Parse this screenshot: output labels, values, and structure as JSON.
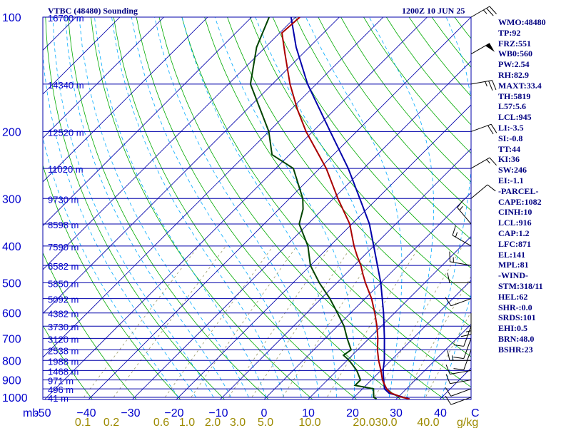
{
  "header": {
    "station": "VTBC (48480) Sounding",
    "time": "1200Z 10 JUN 25"
  },
  "indices": [
    "WMO:48480",
    "TP:92",
    "FRZ:551",
    "WB0:560",
    "PW:2.54",
    "RH:82.9",
    "MAXT:33.4",
    "TH:5819",
    "L57:5.6",
    "LCL:945",
    "LI:-3.5",
    "SI:-0.8",
    "TT:44",
    "KI:36",
    "SW:246",
    "EI:-1.1",
    "-PARCEL-",
    "CAPE:1082",
    "CINH:10",
    "LCL:916",
    "CAP:1.2",
    "LFC:871",
    "EL:141",
    "MPL:81",
    "-WIND-",
    "STM:318/11",
    "HEL:62",
    "SHR-:0.0",
    "SRDS:101",
    "EHI:0.5",
    "BRN:48.0",
    "BSHR:23"
  ],
  "chart_data": {
    "type": "skew-t",
    "title": "VTBC (48480) Sounding",
    "subtitle": "1200Z 10 JUN 25",
    "pressure_unit": "mb",
    "mixing_ratio_unit": "g/kg",
    "pressure_ticks": [
      100,
      200,
      300,
      400,
      500,
      600,
      700,
      800,
      900,
      1000
    ],
    "temperature_ticks": [
      "-50",
      "−40",
      "−30",
      "−20",
      "−10",
      "0",
      "10",
      "20",
      "30",
      "40",
      "C"
    ],
    "mixing_ratio_ticks": [
      "0.1",
      "0.2",
      "0.6",
      "1.0",
      "2.0",
      "3.0",
      "5.0",
      "10.0",
      "20.0",
      "30.0",
      "40.0"
    ],
    "height_levels": [
      {
        "pressure": 100,
        "label": "16700 m"
      },
      {
        "pressure": 150,
        "label": "14340 m"
      },
      {
        "pressure": 200,
        "label": "12520 m"
      },
      {
        "pressure": 250,
        "label": "11020 m"
      },
      {
        "pressure": 300,
        "label": "9730 m"
      },
      {
        "pressure": 350,
        "label": "8598 m"
      },
      {
        "pressure": 400,
        "label": "7590 m"
      },
      {
        "pressure": 450,
        "label": "6582 m"
      },
      {
        "pressure": 500,
        "label": "5850 m"
      },
      {
        "pressure": 550,
        "label": "5092 m"
      },
      {
        "pressure": 600,
        "label": "4382 m"
      },
      {
        "pressure": 650,
        "label": "3730 m"
      },
      {
        "pressure": 700,
        "label": "3120 m"
      },
      {
        "pressure": 750,
        "label": "2538 m"
      },
      {
        "pressure": 800,
        "label": "1988 m"
      },
      {
        "pressure": 850,
        "label": "1468 m"
      },
      {
        "pressure": 900,
        "label": "971 m"
      },
      {
        "pressure": 950,
        "label": "496 m"
      },
      {
        "pressure": 1000,
        "label": "41 m"
      }
    ],
    "temperature_profile": [
      {
        "p": 1010,
        "t": 33.0
      },
      {
        "p": 1000,
        "t": 31.0
      },
      {
        "p": 975,
        "t": 27.5
      },
      {
        "p": 950,
        "t": 25.5
      },
      {
        "p": 925,
        "t": 24.0
      },
      {
        "p": 900,
        "t": 22.5
      },
      {
        "p": 850,
        "t": 20.0
      },
      {
        "p": 800,
        "t": 17.2
      },
      {
        "p": 750,
        "t": 14.5
      },
      {
        "p": 700,
        "t": 12.0
      },
      {
        "p": 650,
        "t": 9.0
      },
      {
        "p": 600,
        "t": 5.5
      },
      {
        "p": 550,
        "t": 1.5
      },
      {
        "p": 500,
        "t": -3.5
      },
      {
        "p": 475,
        "t": -6.0
      },
      {
        "p": 450,
        "t": -8.5
      },
      {
        "p": 425,
        "t": -11.5
      },
      {
        "p": 400,
        "t": -14.5
      },
      {
        "p": 350,
        "t": -20.5
      },
      {
        "p": 300,
        "t": -29.0
      },
      {
        "p": 250,
        "t": -38.5
      },
      {
        "p": 200,
        "t": -51.5
      },
      {
        "p": 175,
        "t": -58.5
      },
      {
        "p": 150,
        "t": -66.0
      },
      {
        "p": 125,
        "t": -74.0
      },
      {
        "p": 110,
        "t": -79.5
      },
      {
        "p": 100,
        "t": -79.0
      }
    ],
    "dewpoint_profile": [
      {
        "p": 1010,
        "t": 25.5
      },
      {
        "p": 1000,
        "t": 24.5
      },
      {
        "p": 975,
        "t": 23.5
      },
      {
        "p": 950,
        "t": 22.5
      },
      {
        "p": 930,
        "t": 17.5
      },
      {
        "p": 900,
        "t": 17.5
      },
      {
        "p": 850,
        "t": 14.5
      },
      {
        "p": 800,
        "t": 10.5
      },
      {
        "p": 775,
        "t": 8.0
      },
      {
        "p": 750,
        "t": 8.5
      },
      {
        "p": 700,
        "t": 5.0
      },
      {
        "p": 650,
        "t": 1.5
      },
      {
        "p": 600,
        "t": -3.0
      },
      {
        "p": 550,
        "t": -8.0
      },
      {
        "p": 500,
        "t": -14.0
      },
      {
        "p": 450,
        "t": -20.0
      },
      {
        "p": 400,
        "t": -25.0
      },
      {
        "p": 350,
        "t": -32.0
      },
      {
        "p": 320,
        "t": -34.5
      },
      {
        "p": 300,
        "t": -37.0
      },
      {
        "p": 250,
        "t": -46.0
      },
      {
        "p": 230,
        "t": -54.0
      },
      {
        "p": 200,
        "t": -60.0
      },
      {
        "p": 150,
        "t": -75.0
      },
      {
        "p": 120,
        "t": -82.0
      },
      {
        "p": 100,
        "t": -86.0
      }
    ],
    "parcel_profile": [
      {
        "p": 1010,
        "t": 33.0
      },
      {
        "p": 975,
        "t": 27.0
      },
      {
        "p": 950,
        "t": 25.0
      },
      {
        "p": 916,
        "t": 23.5
      },
      {
        "p": 850,
        "t": 20.5
      },
      {
        "p": 800,
        "t": 18.5
      },
      {
        "p": 700,
        "t": 13.5
      },
      {
        "p": 600,
        "t": 7.5
      },
      {
        "p": 500,
        "t": 0.0
      },
      {
        "p": 400,
        "t": -10.0
      },
      {
        "p": 350,
        "t": -16.0
      },
      {
        "p": 300,
        "t": -24.0
      },
      {
        "p": 250,
        "t": -33.5
      },
      {
        "p": 200,
        "t": -46.0
      },
      {
        "p": 150,
        "t": -62.0
      },
      {
        "p": 120,
        "t": -73.0
      },
      {
        "p": 100,
        "t": -81.0
      }
    ],
    "wind_barbs": [
      {
        "p": 1000,
        "dir": 250,
        "spd": 10
      },
      {
        "p": 950,
        "dir": 250,
        "spd": 10
      },
      {
        "p": 900,
        "dir": 260,
        "spd": 10
      },
      {
        "p": 850,
        "dir": 260,
        "spd": 10
      },
      {
        "p": 800,
        "dir": 270,
        "spd": 15
      },
      {
        "p": 750,
        "dir": 200,
        "spd": 10
      },
      {
        "p": 700,
        "dir": 200,
        "spd": 10
      },
      {
        "p": 650,
        "dir": 200,
        "spd": 10
      },
      {
        "p": 600,
        "dir": 180,
        "spd": 15
      },
      {
        "p": 550,
        "dir": 250,
        "spd": 10
      },
      {
        "p": 500,
        "dir": 270,
        "spd": 10
      },
      {
        "p": 450,
        "dir": 280,
        "spd": 15
      },
      {
        "p": 400,
        "dir": 300,
        "spd": 15
      },
      {
        "p": 350,
        "dir": 320,
        "spd": 15
      },
      {
        "p": 300,
        "dir": 50,
        "spd": 10
      },
      {
        "p": 250,
        "dir": 60,
        "spd": 15
      },
      {
        "p": 200,
        "dir": 70,
        "spd": 20
      },
      {
        "p": 150,
        "dir": 80,
        "spd": 25
      },
      {
        "p": 125,
        "dir": 60,
        "spd": 50
      },
      {
        "p": 100,
        "dir": 60,
        "spd": 25
      }
    ],
    "colors": {
      "temperature": "#aa0000",
      "dewpoint": "#004400",
      "parcel": "#0000aa",
      "isobar": "#0000aa",
      "isotherm": "#0000aa",
      "dry_adiabat": "#00aa00",
      "moist_adiabat": "#00aaff",
      "mixing_ratio": "#999966"
    }
  }
}
